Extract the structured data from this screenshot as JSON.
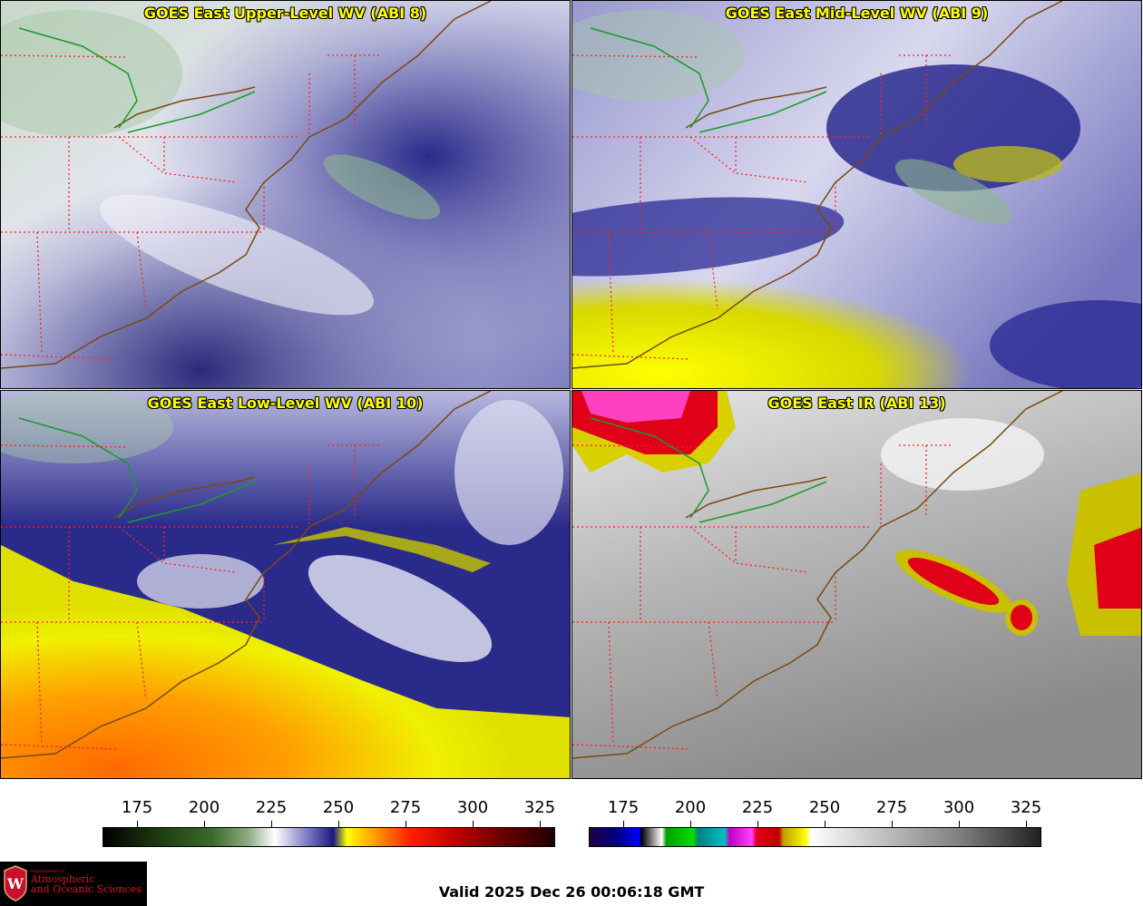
{
  "panels": [
    {
      "title": "GOES East Upper-Level WV (ABI 8)"
    },
    {
      "title": "GOES East Mid-Level WV (ABI 9)"
    },
    {
      "title": "GOES East Low-Level WV (ABI 10)"
    },
    {
      "title": "GOES East IR (ABI 13)"
    }
  ],
  "colorbars": {
    "wv": {
      "ticks": [
        "175",
        "200",
        "225",
        "250",
        "275",
        "300",
        "325"
      ]
    },
    "ir": {
      "ticks": [
        "175",
        "200",
        "225",
        "250",
        "275",
        "300",
        "325"
      ]
    }
  },
  "logo": {
    "line1": "Department of",
    "line2": "Atmospheric",
    "line3": "and Oceanic Sciences"
  },
  "valid_time": "Valid 2025 Dec 26 00:06:18 GMT",
  "colors": {
    "title": "#ffff00",
    "state_borders": "#ff2020",
    "coastline": "#7a4a10",
    "great_lakes_border": "#1a9a2a"
  }
}
